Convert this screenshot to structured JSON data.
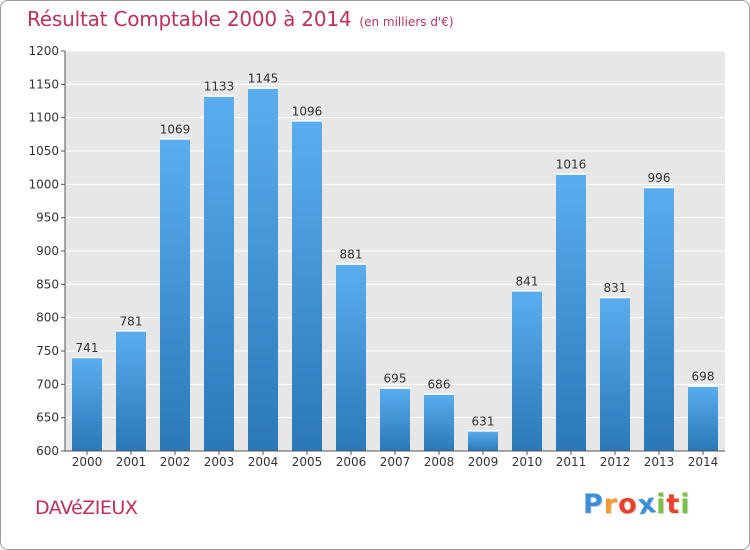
{
  "header": {
    "title": "Résultat Comptable 2000 à 2014",
    "unit": "(en milliers d'€)"
  },
  "commune": "DAVéZIEUX",
  "logo": {
    "letters": [
      "P",
      "r",
      "o",
      "x",
      "i",
      "t",
      "i"
    ],
    "colors": [
      "#3a8fd8",
      "#f29a2e",
      "#e8412c",
      "#3a8fd8",
      "#7cc242",
      "#e8412c",
      "#7cc242"
    ]
  },
  "colors": {
    "bar_light": "#5aaef0",
    "bar_dark": "#2a78b8",
    "title": "#c0305a",
    "plot_bg": "#e7e7e7",
    "grid": "#ffffff"
  },
  "chart_data": {
    "type": "bar",
    "title": "Résultat Comptable 2000 à 2014",
    "xlabel": "",
    "ylabel": "",
    "categories": [
      "2000",
      "2001",
      "2002",
      "2003",
      "2004",
      "2005",
      "2006",
      "2007",
      "2008",
      "2009",
      "2010",
      "2011",
      "2012",
      "2013",
      "2014"
    ],
    "values": [
      741,
      781,
      1069,
      1133,
      1145,
      1096,
      881,
      695,
      686,
      631,
      841,
      1016,
      831,
      996,
      698
    ],
    "data_labels": [
      "741",
      "781",
      "1069",
      "1133",
      "1145",
      "1096",
      "881",
      "695",
      "686",
      "631",
      "841",
      "1016",
      "831",
      "996",
      "698"
    ],
    "ylim": [
      600,
      1200
    ],
    "yticks": [
      600,
      650,
      700,
      750,
      800,
      850,
      900,
      950,
      1000,
      1050,
      1100,
      1150,
      1200
    ],
    "grid": true,
    "legend": "none"
  }
}
